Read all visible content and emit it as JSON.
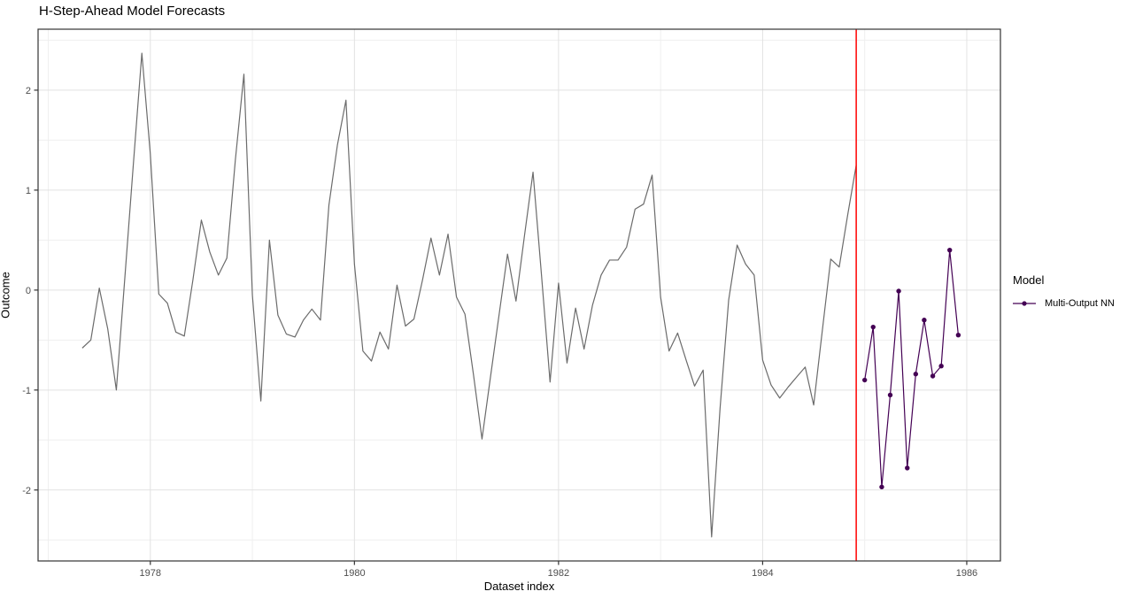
{
  "title": "H-Step-Ahead Model Forecasts",
  "chart_data": {
    "type": "line",
    "title": "H-Step-Ahead Model Forecasts",
    "xlabel": "Dataset index",
    "ylabel": "Outcome",
    "xlim": [
      1976.9,
      1986.33
    ],
    "ylim": [
      -2.71,
      2.61
    ],
    "x_ticks": [
      1978,
      1980,
      1982,
      1984,
      1986
    ],
    "x_tick_labels": [
      "1978",
      "1980",
      "1982",
      "1984",
      "1986"
    ],
    "x_minor_ticks": [
      1977,
      1979,
      1981,
      1983,
      1985
    ],
    "y_ticks": [
      2,
      1,
      0,
      -1,
      -2
    ],
    "y_tick_labels": [
      "2",
      "1",
      "0",
      "-1",
      "-2"
    ],
    "y_minor_ticks": [
      2.5,
      1.5,
      0.5,
      -0.5,
      -1.5,
      -2.5
    ],
    "grid": "on",
    "vline": {
      "x": 1984.917,
      "color": "#FF0000",
      "name": "forecast-origin-cutoff"
    },
    "series": [
      {
        "name": "observed-history",
        "style": "line",
        "color": "#6B6B6B",
        "x": [
          1977.333,
          1977.417,
          1977.5,
          1977.583,
          1977.667,
          1977.75,
          1977.833,
          1977.917,
          1978,
          1978.083,
          1978.167,
          1978.25,
          1978.333,
          1978.417,
          1978.5,
          1978.583,
          1978.667,
          1978.75,
          1978.833,
          1978.917,
          1979,
          1979.083,
          1979.167,
          1979.25,
          1979.333,
          1979.417,
          1979.5,
          1979.583,
          1979.667,
          1979.75,
          1979.833,
          1979.917,
          1980,
          1980.083,
          1980.167,
          1980.25,
          1980.333,
          1980.417,
          1980.5,
          1980.583,
          1980.667,
          1980.75,
          1980.833,
          1980.917,
          1981,
          1981.083,
          1981.167,
          1981.25,
          1981.333,
          1981.417,
          1981.5,
          1981.583,
          1981.667,
          1981.75,
          1981.833,
          1981.917,
          1982,
          1982.083,
          1982.167,
          1982.25,
          1982.333,
          1982.417,
          1982.5,
          1982.583,
          1982.667,
          1982.75,
          1982.833,
          1982.917,
          1983,
          1983.083,
          1983.167,
          1983.25,
          1983.333,
          1983.417,
          1983.5,
          1983.583,
          1983.667,
          1983.75,
          1983.833,
          1983.917,
          1984,
          1984.083,
          1984.167,
          1984.25,
          1984.333,
          1984.417,
          1984.5,
          1984.583,
          1984.667,
          1984.75,
          1984.833,
          1984.917
        ],
        "y": [
          -0.58,
          -0.5,
          0.02,
          -0.39,
          -1.0,
          0.12,
          1.25,
          2.37,
          1.36,
          -0.04,
          -0.13,
          -0.42,
          -0.46,
          0.1,
          0.7,
          0.38,
          0.15,
          0.32,
          1.3,
          2.16,
          -0.05,
          -1.11,
          0.5,
          -0.25,
          -0.44,
          -0.47,
          -0.3,
          -0.19,
          -0.3,
          0.85,
          1.45,
          1.9,
          0.26,
          -0.61,
          -0.71,
          -0.42,
          -0.59,
          0.05,
          -0.36,
          -0.29,
          0.1,
          0.52,
          0.15,
          0.56,
          -0.07,
          -0.24,
          -0.85,
          -1.49,
          -0.87,
          -0.25,
          0.36,
          -0.11,
          0.55,
          1.18,
          0.15,
          -0.92,
          0.07,
          -0.73,
          -0.18,
          -0.59,
          -0.15,
          0.15,
          0.3,
          0.3,
          0.43,
          0.81,
          0.86,
          1.15,
          -0.07,
          -0.61,
          -0.43,
          -0.7,
          -0.96,
          -0.8,
          -2.47,
          -1.18,
          -0.1,
          0.45,
          0.26,
          0.15,
          -0.7,
          -0.95,
          -1.08,
          -0.97,
          -0.87,
          -0.77,
          -1.15,
          -0.42,
          0.31,
          0.23,
          0.75,
          1.25
        ]
      },
      {
        "name": "Multi-Output NN",
        "style": "line+marker",
        "color": "#440154",
        "x": [
          1985,
          1985.083,
          1985.167,
          1985.25,
          1985.333,
          1985.417,
          1985.5,
          1985.583,
          1985.667,
          1985.75,
          1985.833,
          1985.917
        ],
        "y": [
          -0.9,
          -0.37,
          -1.97,
          -1.05,
          -0.01,
          -1.78,
          -0.84,
          -0.3,
          -0.86,
          -0.76,
          0.4,
          -0.45
        ]
      }
    ],
    "legend": {
      "title": "Model",
      "position": "right",
      "entries": [
        {
          "label": "Multi-Output NN",
          "color": "#440154"
        }
      ]
    },
    "colors": {
      "background": "#FFFFFF",
      "panel_background": "#FFFFFF",
      "grid_major": "#E2E2E2",
      "grid_minor": "#EFEFEF",
      "panel_border": "#333333",
      "tick_text": "#4D4D4D",
      "title_text": "#000000"
    }
  }
}
